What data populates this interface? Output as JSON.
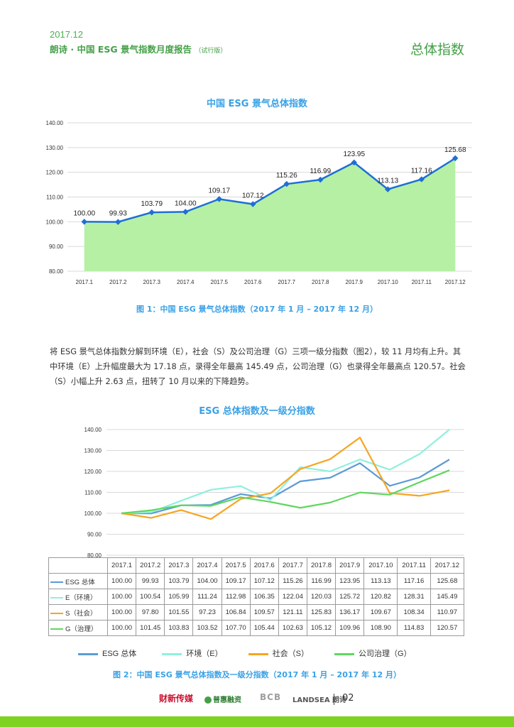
{
  "header": {
    "date": "2017.12",
    "title": "朗诗 · 中国 ESG 景气指数月度报告",
    "trial": "（试行版）",
    "section": "总体指数"
  },
  "chart1": {
    "title": "中国 ESG 景气总体指数",
    "caption": "图 1：中国 ESG 景气总体指数（2017 年 1 月 – 2017 年 12 月）"
  },
  "paragraph": "将 ESG 景气总体指数分解到环境（E），社会（S）及公司治理（G）三项一级分指数（图2），较 11 月均有上升。其中环境（E）上升幅度最大为 17.18 点，录得全年最高 145.49 点，公司治理（G）也录得全年最高点 120.57。社会（S）小幅上升 2.63 点，扭转了 10 月以来的下降趋势。",
  "chart2": {
    "title": "ESG 总体指数及一级分指数",
    "caption": "图 2：中国 ESG 景气总体指数及一级分指数（2017 年 1 月 – 2017 年 12 月）"
  },
  "chart_data": [
    {
      "type": "area",
      "title": "中国 ESG 景气总体指数",
      "categories": [
        "2017.1",
        "2017.2",
        "2017.3",
        "2017.4",
        "2017.5",
        "2017.6",
        "2017.7",
        "2017.8",
        "2017.9",
        "2017.10",
        "2017.11",
        "2017.12"
      ],
      "values": [
        100.0,
        99.93,
        103.79,
        104.0,
        109.17,
        107.12,
        115.26,
        116.99,
        123.95,
        113.13,
        117.16,
        125.68
      ],
      "value_labels": [
        "100.00",
        "99.93",
        "103.79",
        "104.00",
        "109.17",
        "107.12",
        "115.26",
        "116.99",
        "123.95",
        "113.13",
        "117.16",
        "125.68"
      ],
      "y_ticks": [
        "80.00",
        "90.00",
        "100.00",
        "110.00",
        "120.00",
        "130.00",
        "140.00"
      ],
      "ylim": [
        80,
        140
      ],
      "grid": true,
      "colors": {
        "fill": "#b6f0a4",
        "line": "#1f6fd6",
        "marker": "#1f6fd6"
      }
    },
    {
      "type": "line",
      "title": "ESG 总体指数及一级分指数",
      "categories": [
        "2017.1",
        "2017.2",
        "2017.3",
        "2017.4",
        "2017.5",
        "2017.6",
        "2017.7",
        "2017.8",
        "2017.9",
        "2017.10",
        "2017.11",
        "2017.12"
      ],
      "y_ticks": [
        "80.00",
        "90.00",
        "100.00",
        "110.00",
        "120.00",
        "130.00",
        "140.00"
      ],
      "ylim": [
        80,
        140
      ],
      "grid": true,
      "legend_position": "bottom",
      "series": [
        {
          "name": "ESG 总体",
          "table_label": "ESG 总体",
          "color": "#5b9bd5",
          "values": [
            100.0,
            99.93,
            103.79,
            104.0,
            109.17,
            107.12,
            115.26,
            116.99,
            123.95,
            113.13,
            117.16,
            125.68
          ],
          "labels": [
            "100.00",
            "99.93",
            "103.79",
            "104.00",
            "109.17",
            "107.12",
            "115.26",
            "116.99",
            "123.95",
            "113.13",
            "117.16",
            "125.68"
          ]
        },
        {
          "name": "环境（E）",
          "table_label": "E（环境）",
          "color": "#8ff0dc",
          "values": [
            100.0,
            100.54,
            105.99,
            111.24,
            112.98,
            106.35,
            122.04,
            120.03,
            125.72,
            120.82,
            128.31,
            145.49
          ],
          "labels": [
            "100.00",
            "100.54",
            "105.99",
            "111.24",
            "112.98",
            "106.35",
            "122.04",
            "120.03",
            "125.72",
            "120.82",
            "128.31",
            "145.49"
          ]
        },
        {
          "name": "社会（S）",
          "table_label": "S（社会）",
          "color": "#f5a623",
          "values": [
            100.0,
            97.8,
            101.55,
            97.23,
            106.84,
            109.57,
            121.11,
            125.83,
            136.17,
            109.67,
            108.34,
            110.97
          ],
          "labels": [
            "100.00",
            "97.80",
            "101.55",
            "97.23",
            "106.84",
            "109.57",
            "121.11",
            "125.83",
            "136.17",
            "109.67",
            "108.34",
            "110.97"
          ]
        },
        {
          "name": "公司治理（G）",
          "table_label": "G（治理）",
          "color": "#5fd75f",
          "values": [
            100.0,
            101.45,
            103.83,
            103.52,
            107.7,
            105.44,
            102.63,
            105.12,
            109.96,
            108.9,
            114.83,
            120.57
          ],
          "labels": [
            "100.00",
            "101.45",
            "103.83",
            "103.52",
            "107.70",
            "105.44",
            "102.63",
            "105.12",
            "109.96",
            "108.90",
            "114.83",
            "120.57"
          ]
        }
      ]
    }
  ],
  "footer": {
    "logos": [
      "财新传媒",
      "普惠融资",
      "BCB",
      "朗诗"
    ],
    "page_number": "02"
  },
  "colors": {
    "brand_green": "#43a047",
    "accent_blue": "#3aa1e6",
    "bottom_bar": "#7ed321"
  }
}
